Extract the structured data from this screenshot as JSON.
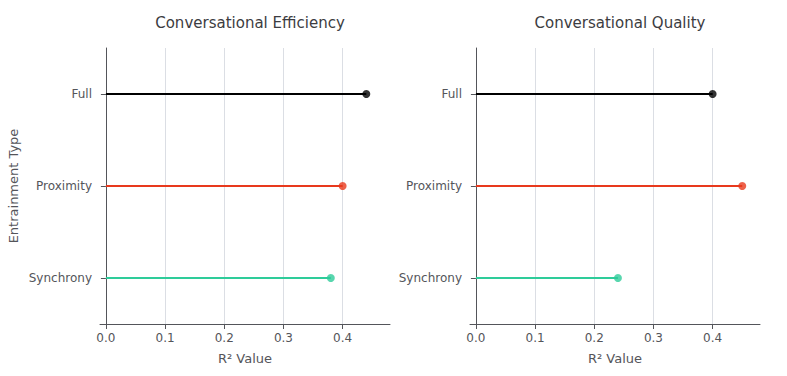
{
  "chart_data": [
    {
      "type": "lollipop",
      "orientation": "horizontal",
      "title": "Conversational Efficiency",
      "categories": [
        "Synchrony",
        "Proximity",
        "Full"
      ],
      "values": [
        0.38,
        0.4,
        0.44
      ],
      "colors": [
        "#2ecc9a",
        "#e8391d",
        "#000000"
      ],
      "xlim": [
        -0.01,
        0.48
      ],
      "xticks": [
        {
          "value": 0.0,
          "label": "0.0"
        },
        0.1,
        0.2,
        0.3,
        0.4
      ],
      "xlabel": "R² Value",
      "ylabel": "Entrainment Type",
      "grid": true
    },
    {
      "type": "lollipop",
      "orientation": "horizontal",
      "title": "Conversational Quality",
      "categories": [
        "Synchrony",
        "Proximity",
        "Full"
      ],
      "values": [
        0.24,
        0.45,
        0.4
      ],
      "colors": [
        "#2ecc9a",
        "#e8391d",
        "#000000"
      ],
      "xlim": [
        -0.01,
        0.48
      ],
      "xticks": [
        {
          "value": 0.0,
          "label": "0.0"
        },
        0.1,
        0.2,
        0.3,
        0.4
      ],
      "xlabel": "R² Value",
      "grid": true
    }
  ]
}
